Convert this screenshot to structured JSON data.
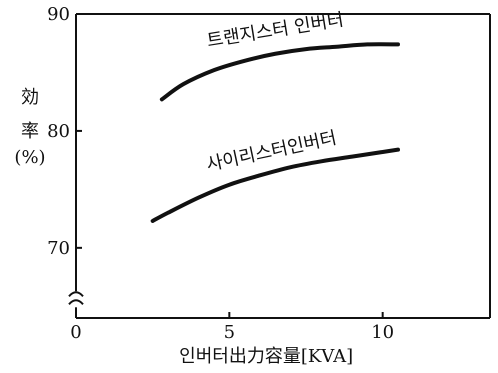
{
  "chart_data": {
    "type": "line",
    "xlabel": "인버터出力容量[KVA]",
    "ylabel": {
      "line1": "効",
      "line2": "率",
      "line3": "(%)"
    },
    "xlim": [
      0,
      13.5
    ],
    "ylim": [
      64,
      90
    ],
    "xticks": [
      0,
      5,
      10
    ],
    "xtick_labels": [
      "0",
      "5",
      "10"
    ],
    "yticks": [
      70,
      80,
      90
    ],
    "ytick_labels": [
      "70",
      "80",
      "90"
    ],
    "grid": false,
    "axis_break_y": true,
    "series": [
      {
        "name": "트랜지스터 인버터",
        "color": "#111111",
        "x": [
          2.8,
          3.5,
          4.5,
          5.5,
          6.5,
          7.5,
          8.5,
          9.5,
          10.5
        ],
        "y": [
          82.7,
          84.0,
          85.2,
          86.0,
          86.6,
          87.0,
          87.2,
          87.4,
          87.4
        ]
      },
      {
        "name": "사이리스터인버터",
        "color": "#111111",
        "x": [
          2.5,
          3.0,
          4.0,
          5.0,
          6.0,
          7.0,
          8.0,
          9.0,
          10.0,
          10.5
        ],
        "y": [
          72.3,
          73.0,
          74.3,
          75.4,
          76.2,
          76.9,
          77.4,
          77.8,
          78.2,
          78.4
        ]
      }
    ]
  }
}
